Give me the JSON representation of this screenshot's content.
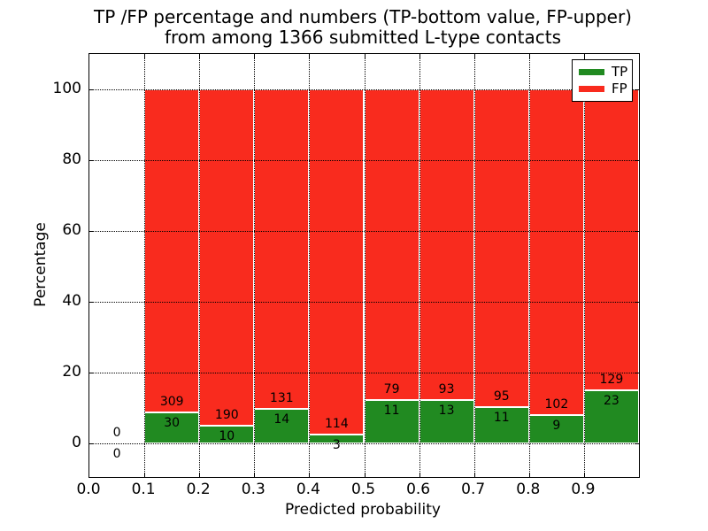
{
  "figure": {
    "title_line1": "TP /FP percentage and numbers (TP-bottom value, FP-upper)",
    "title_line2": "from among 1366 submitted L-type contacts"
  },
  "chart_data": {
    "type": "bar",
    "stacked": true,
    "title": "TP /FP percentage and numbers (TP-bottom value, FP-upper) from among 1366 submitted L-type contacts",
    "xlabel": "Predicted probability",
    "ylabel": "Percentage",
    "xlim": [
      0.0,
      1.0
    ],
    "ylim": [
      -10,
      110
    ],
    "x_ticks": [
      "0.0",
      "0.1",
      "0.2",
      "0.3",
      "0.4",
      "0.5",
      "0.6",
      "0.7",
      "0.8",
      "0.9"
    ],
    "x_tick_values": [
      0.0,
      0.1,
      0.2,
      0.3,
      0.4,
      0.5,
      0.6,
      0.7,
      0.8,
      0.9
    ],
    "y_ticks": [
      0,
      20,
      40,
      60,
      80,
      100
    ],
    "grid": true,
    "grid_style": "dotted",
    "legend_position": "upper right",
    "legend_entries": [
      {
        "label": "TP",
        "color": "#218a21"
      },
      {
        "label": "FP",
        "color": "#f92b1e"
      }
    ],
    "bin_width": 0.1,
    "total_submitted": 1366,
    "bins": [
      {
        "start": 0.0,
        "tp": 0,
        "fp": 0
      },
      {
        "start": 0.1,
        "tp": 30,
        "fp": 309
      },
      {
        "start": 0.2,
        "tp": 10,
        "fp": 190
      },
      {
        "start": 0.3,
        "tp": 14,
        "fp": 131
      },
      {
        "start": 0.4,
        "tp": 3,
        "fp": 114
      },
      {
        "start": 0.5,
        "tp": 11,
        "fp": 79
      },
      {
        "start": 0.6,
        "tp": 13,
        "fp": 93
      },
      {
        "start": 0.7,
        "tp": 11,
        "fp": 95
      },
      {
        "start": 0.8,
        "tp": 9,
        "fp": 102
      },
      {
        "start": 0.9,
        "tp": 23,
        "fp": 129
      }
    ]
  },
  "colors": {
    "tp": "#218a21",
    "fp": "#f92b1e",
    "axis": "#000000",
    "text": "#000000",
    "background": "#ffffff"
  }
}
